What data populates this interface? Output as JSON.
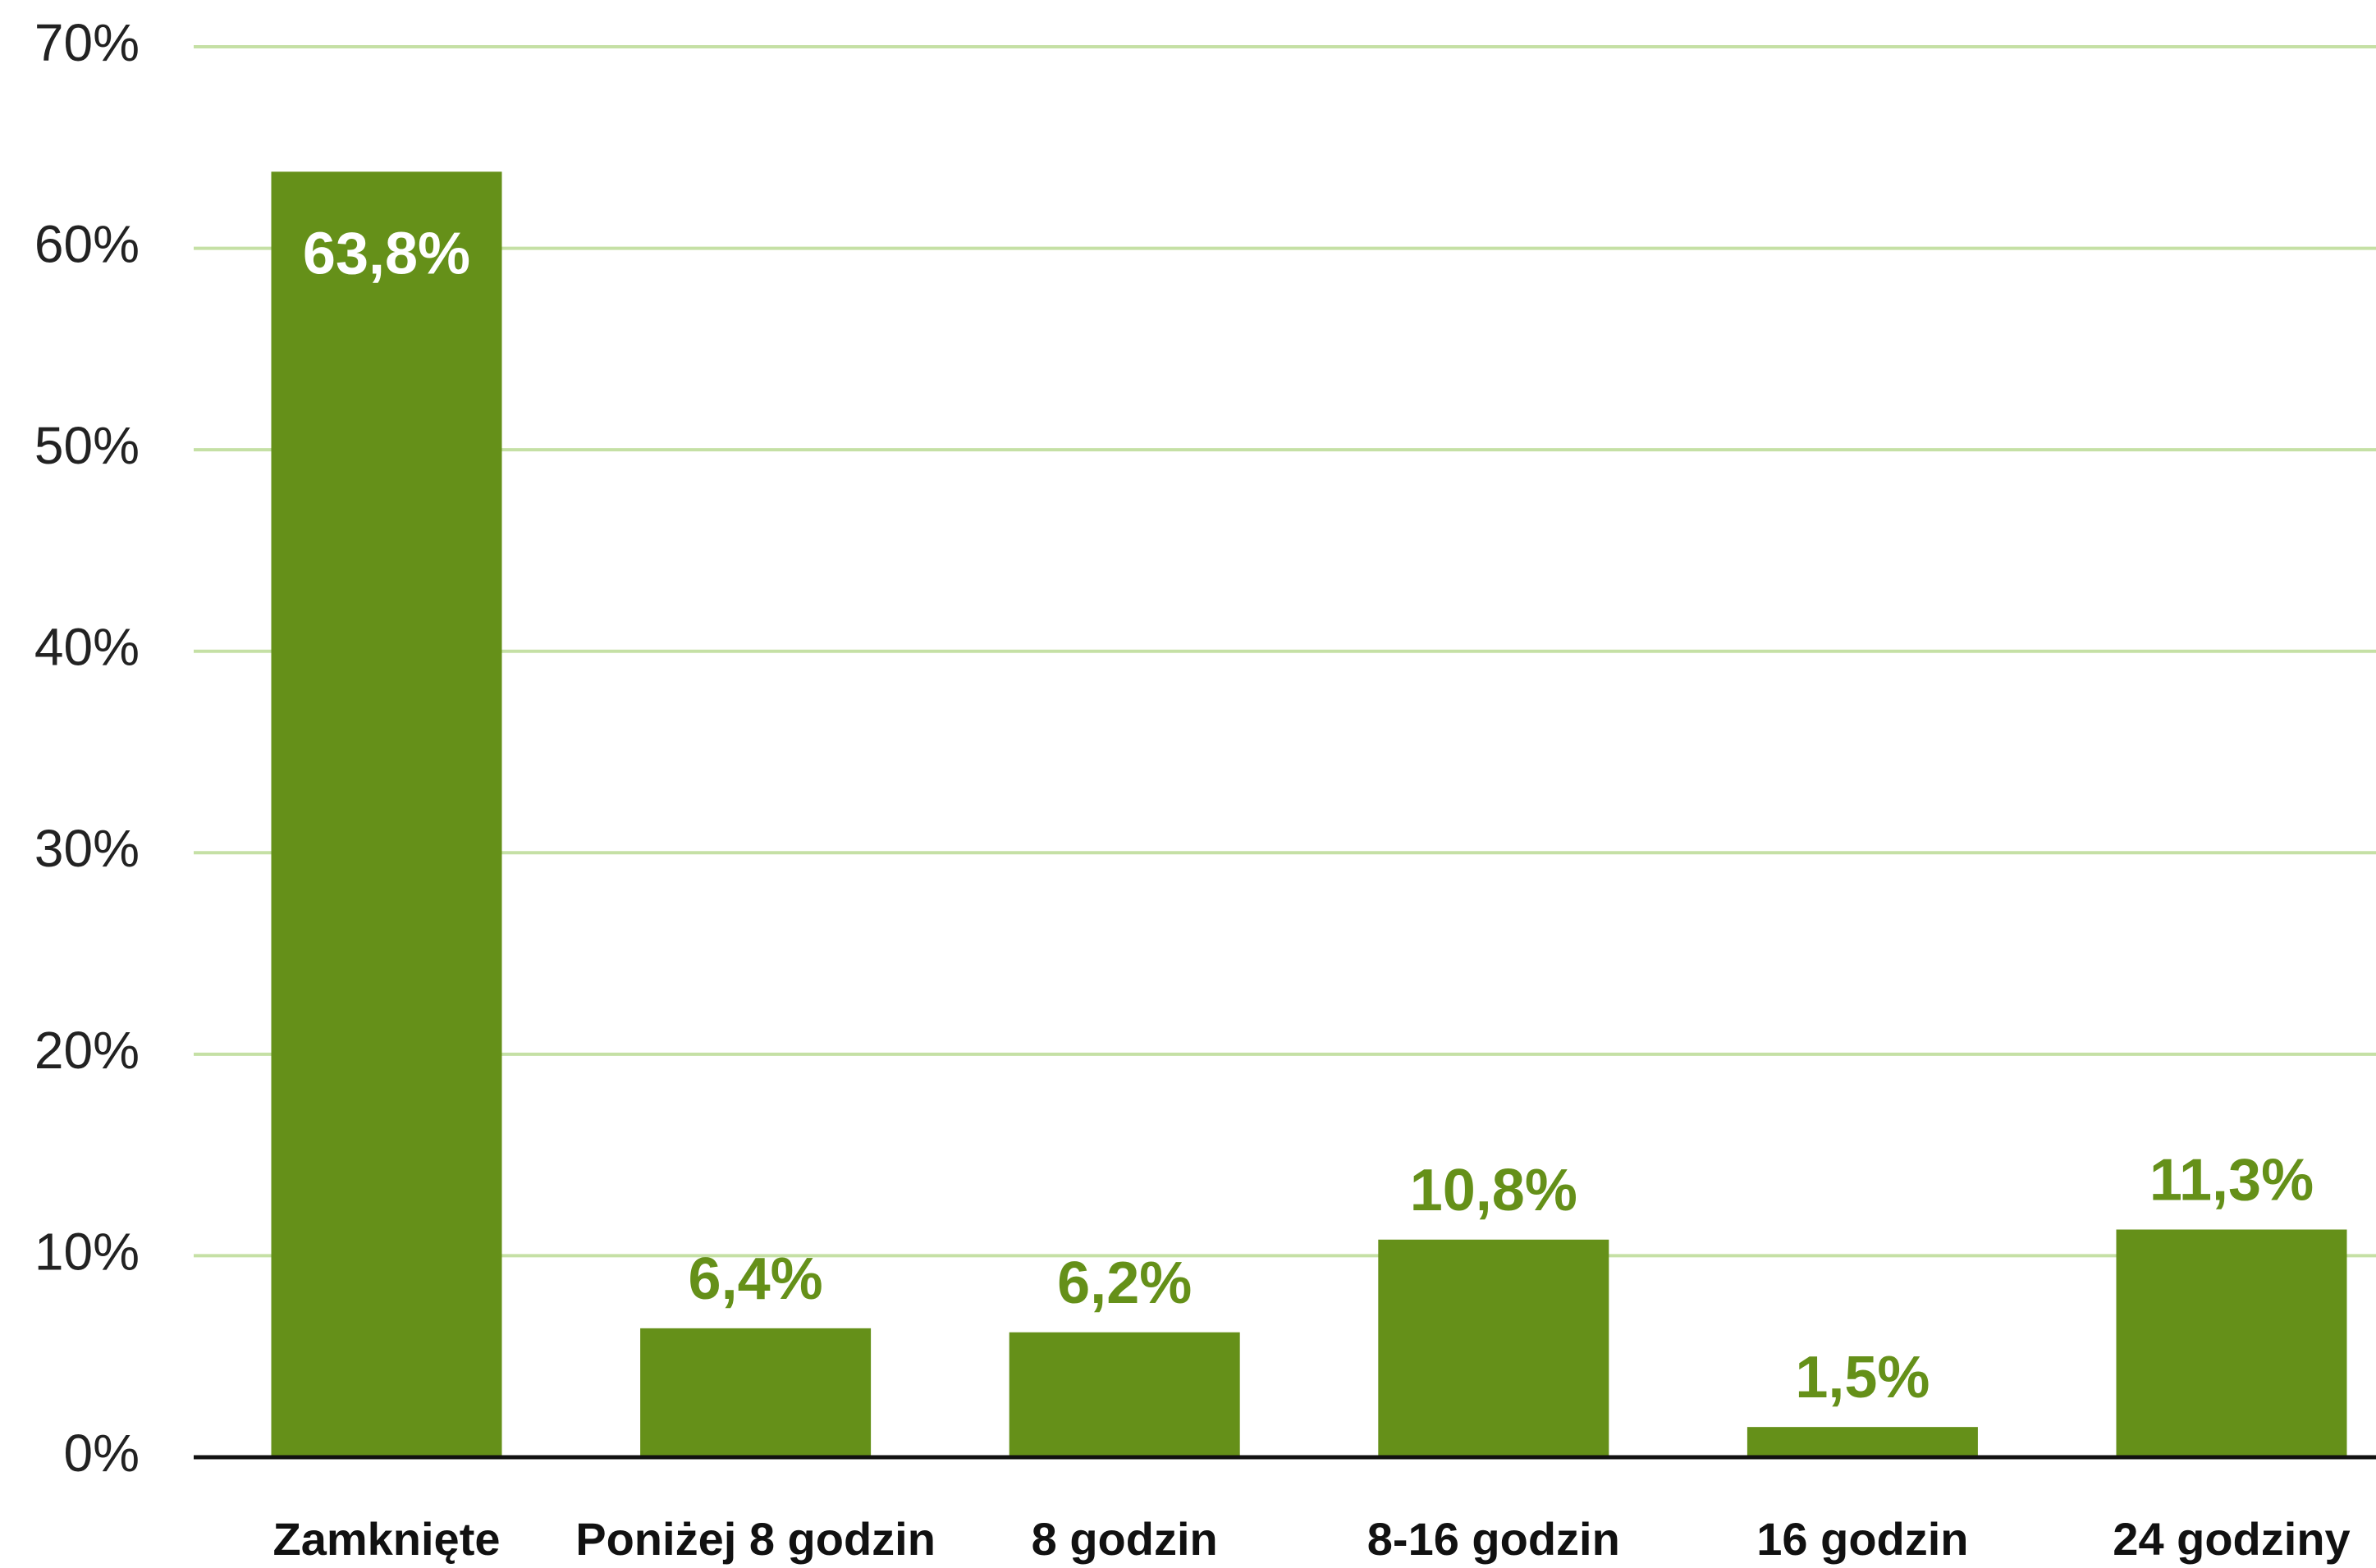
{
  "chart_data": {
    "type": "bar",
    "categories": [
      "Zamknięte",
      "Poniżej 8 godzin",
      "8 godzin",
      "8-16 godzin",
      "16 godzin",
      "24 godziny"
    ],
    "values": [
      63.8,
      6.4,
      6.2,
      10.8,
      1.5,
      11.3
    ],
    "value_labels": [
      "63,8%",
      "6,4%",
      "6,2%",
      "10,8%",
      "1,5%",
      "11,3%"
    ],
    "color": "#659019",
    "ylim": [
      0,
      70
    ],
    "yticks": [
      {
        "value": 0,
        "label": "0%"
      },
      {
        "value": 10,
        "label": "10%"
      },
      {
        "value": 20,
        "label": "20%"
      },
      {
        "value": 30,
        "label": "30%"
      },
      {
        "value": 40,
        "label": "40%"
      },
      {
        "value": 50,
        "label": "50%"
      },
      {
        "value": 60,
        "label": "60%"
      },
      {
        "value": 70,
        "label": "70%"
      }
    ],
    "grid": true
  }
}
